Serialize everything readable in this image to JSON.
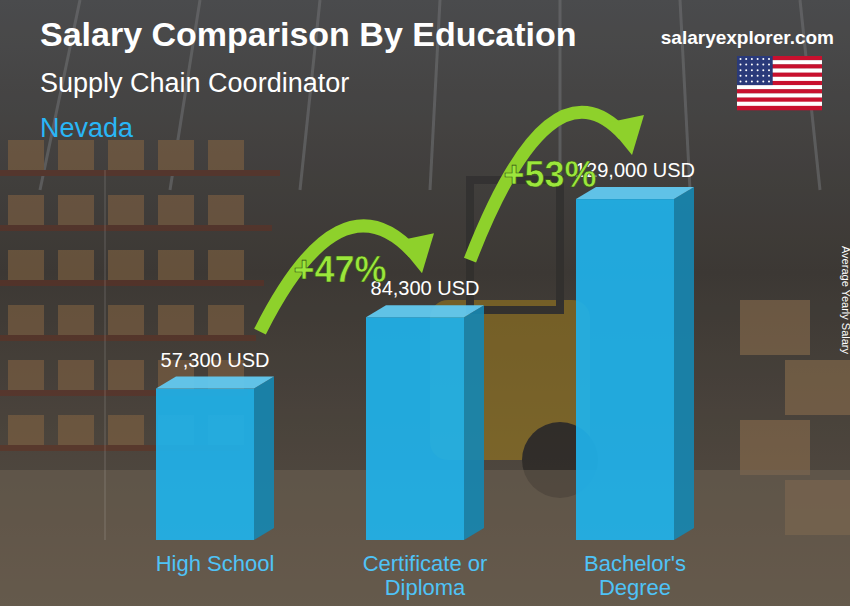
{
  "chart_data": {
    "type": "bar",
    "title": "Salary Comparison By Education",
    "subtitle": "Supply Chain Coordinator",
    "location": "Nevada",
    "source": "salaryexplorer.com",
    "ylabel": "Average Yearly Salary",
    "categories": [
      "High School",
      "Certificate or Diploma",
      "Bachelor's Degree"
    ],
    "values": [
      57300,
      84300,
      129000
    ],
    "value_labels": [
      "57,300 USD",
      "84,300 USD",
      "129,000 USD"
    ],
    "change_labels": [
      "+47%",
      "+53%"
    ],
    "color": "#1fb2ea",
    "ylim": [
      0,
      140000
    ],
    "tick_labels": false,
    "grid": false,
    "data_labels": true
  }
}
